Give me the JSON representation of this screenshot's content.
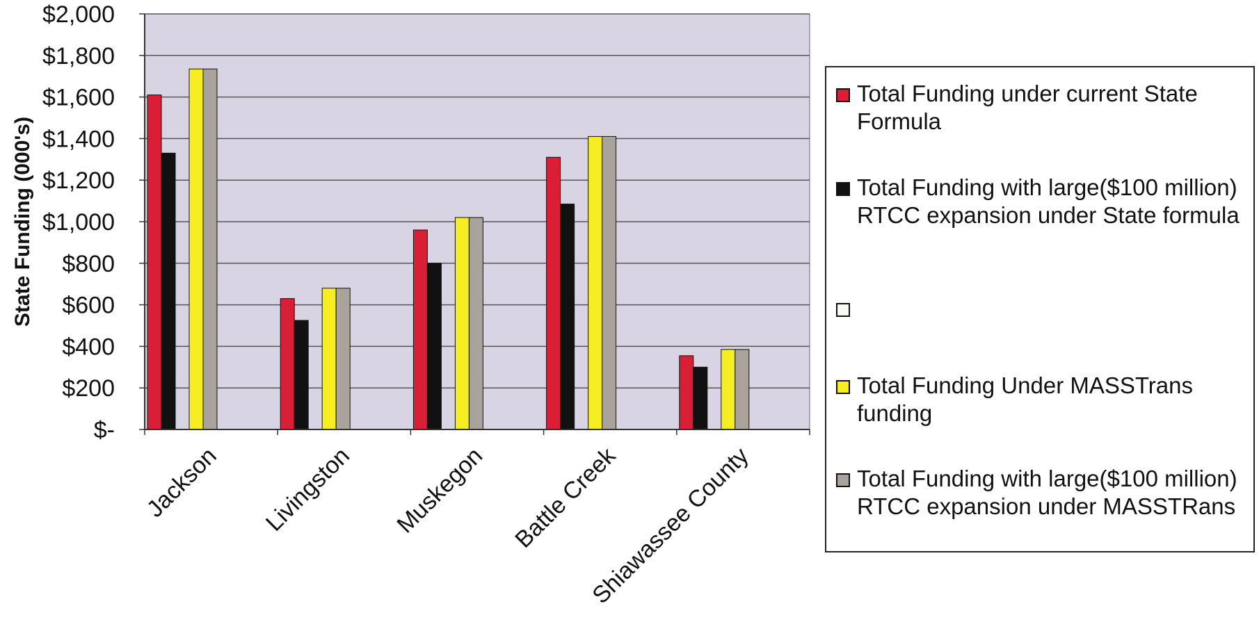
{
  "chart_data": {
    "type": "bar",
    "ylabel": "State Funding (000's)",
    "xlabel": "",
    "ylim": [
      0,
      2000
    ],
    "y_ticks": [
      {
        "value": 0,
        "label": "$-"
      },
      {
        "value": 200,
        "label": "$200"
      },
      {
        "value": 400,
        "label": "$400"
      },
      {
        "value": 600,
        "label": "$600"
      },
      {
        "value": 800,
        "label": "$800"
      },
      {
        "value": 1000,
        "label": "$1,000"
      },
      {
        "value": 1200,
        "label": "$1,200"
      },
      {
        "value": 1400,
        "label": "$1,400"
      },
      {
        "value": 1600,
        "label": "$1,600"
      },
      {
        "value": 1800,
        "label": "$1,800"
      },
      {
        "value": 2000,
        "label": "$2,000"
      }
    ],
    "grid": true,
    "legend_position": "right",
    "plot_background": "#d9d4e3",
    "categories": [
      "Jackson",
      "Livingston",
      "Muskegon",
      "Battle Creek",
      "Shiawassee County"
    ],
    "series": [
      {
        "name": "Total Funding under current State Formula",
        "color": "#d81f35",
        "values": [
          1610,
          630,
          960,
          1310,
          355
        ]
      },
      {
        "name": "Total Funding with large($100 million) RTCC expansion under State formula",
        "color": "#111111",
        "values": [
          1330,
          525,
          800,
          1085,
          300
        ]
      },
      {
        "name": "",
        "color": "#fafaf0",
        "values": [
          0,
          0,
          0,
          0,
          0
        ]
      },
      {
        "name": "Total Funding Under MASSTrans funding",
        "color": "#f6ee22",
        "values": [
          1735,
          680,
          1020,
          1410,
          385
        ]
      },
      {
        "name": "Total Funding with large($100 million) RTCC expansion under MASSTRans",
        "color": "#a9a39b",
        "values": [
          1735,
          680,
          1020,
          1410,
          385
        ]
      }
    ]
  }
}
